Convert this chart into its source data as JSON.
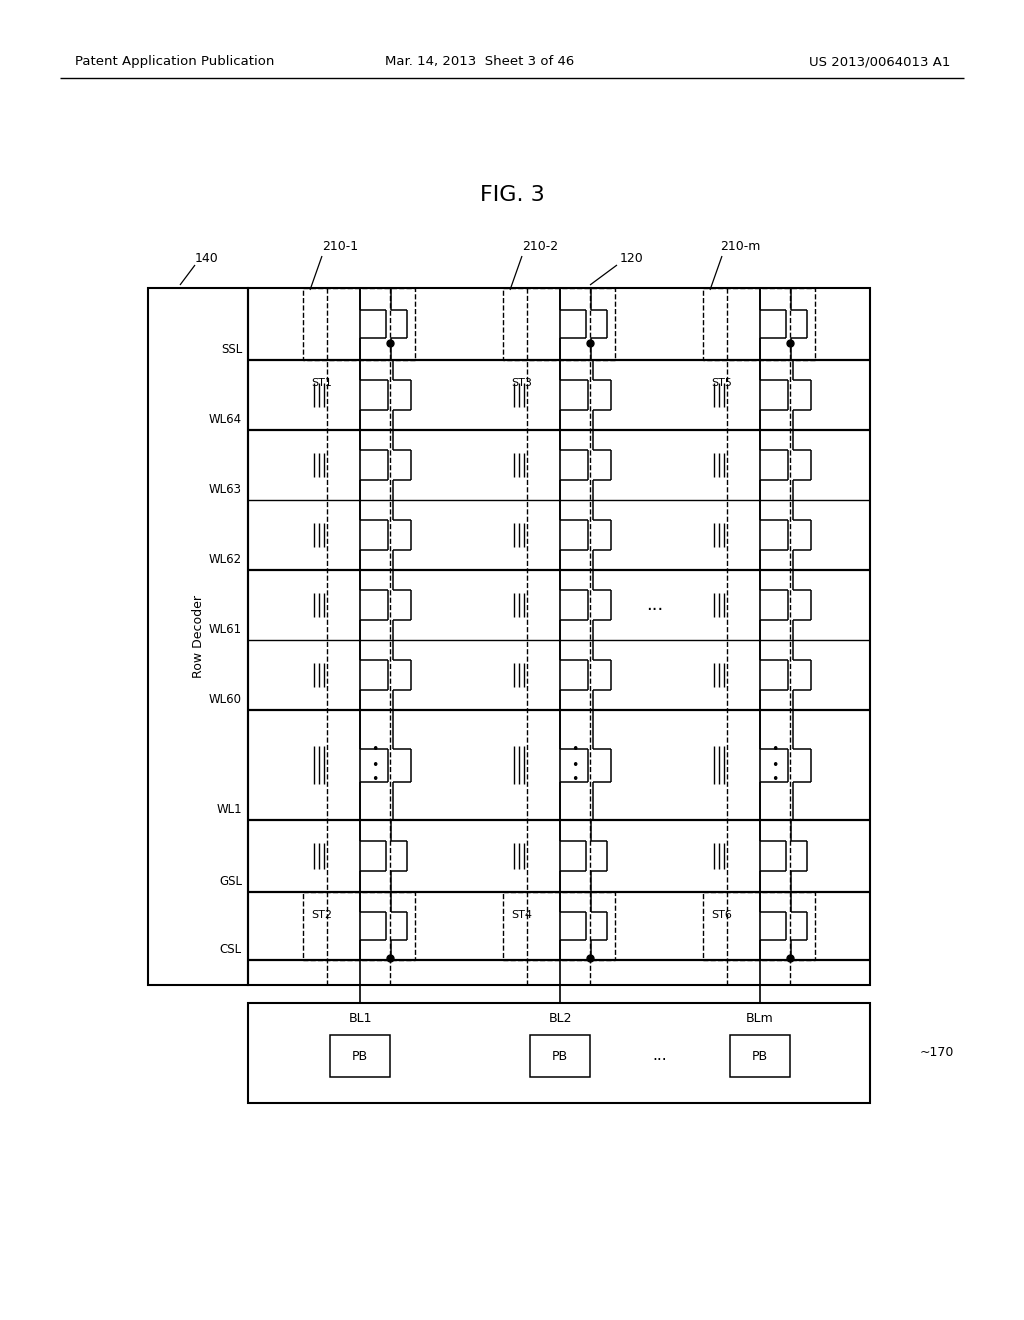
{
  "header_left": "Patent Application Publication",
  "header_mid": "Mar. 14, 2013  Sheet 3 of 46",
  "header_right": "US 2013/0064013 A1",
  "fig_title": "FIG. 3",
  "label_120": "120",
  "label_140": "140",
  "label_row_decoder": "Row Decoder",
  "col_labels": [
    "210-1",
    "210-2",
    "210-m"
  ],
  "row_labels": [
    "SSL",
    "WL64",
    "WL63",
    "WL62",
    "WL61",
    "WL60",
    "WL1",
    "GSL",
    "CSL"
  ],
  "st_top": [
    "ST1",
    "ST3",
    "ST5"
  ],
  "st_bot": [
    "ST2",
    "ST4",
    "ST6"
  ],
  "bl_labels": [
    "BL1",
    "BL2",
    "BLm"
  ],
  "pb_label": "PB",
  "label_170": "170",
  "dots_h": "...",
  "dots_v": "•\n•\n•"
}
